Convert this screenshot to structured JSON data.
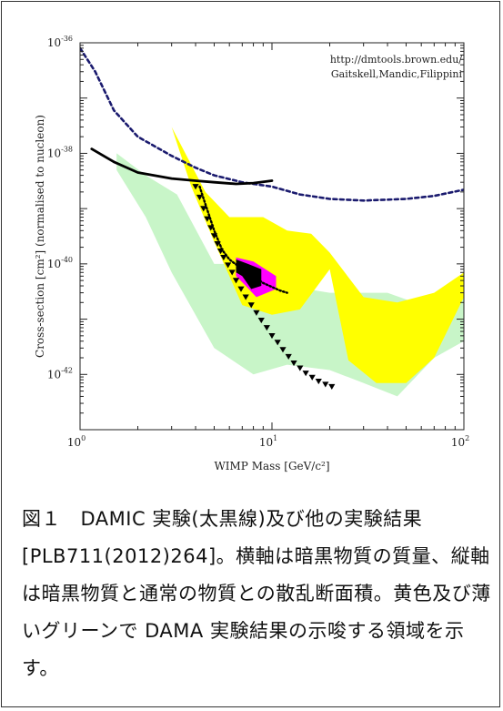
{
  "caption": "図１　DAMIC 実験(太黒線)及び他の実験結果[PLB711(2012)264]。横軸は暗黒物質の質量、縦軸は暗黒物質と通常の物質との散乱断面積。黄色及び薄いグリーンで DAMA 実験結果の示唆する領域を示す。",
  "chart_data": {
    "type": "line",
    "xlabel": "WIMP Mass [GeV/c²]",
    "ylabel": "Cross-section [cm²] (normalised to nucleon)",
    "x_scale": "log",
    "y_scale": "log",
    "xlim": [
      1,
      100
    ],
    "ylim": [
      1e-43,
      1e-36
    ],
    "x_ticks": [
      {
        "base": "10",
        "exp": "0",
        "value": 1
      },
      {
        "base": "10",
        "exp": "1",
        "value": 10
      },
      {
        "base": "10",
        "exp": "2",
        "value": 100
      }
    ],
    "y_ticks": [
      {
        "base": "10",
        "exp": "-36",
        "value": 1e-36
      },
      {
        "base": "10",
        "exp": "-38",
        "value": 1e-38
      },
      {
        "base": "10",
        "exp": "-40",
        "value": 1e-40
      },
      {
        "base": "10",
        "exp": "-42",
        "value": 1e-42
      }
    ],
    "annotation": [
      "http://dmtools.brown.edu/",
      "Gaitskell,Mandic,Filippini"
    ],
    "series": [
      {
        "kind": "band",
        "color": "#c8f5c8",
        "upper": [
          [
            1.55,
            1e-38
          ],
          [
            2.2,
            4e-39
          ],
          [
            3.2,
            1.8e-39
          ],
          [
            5,
            1e-40
          ],
          [
            8,
            1e-40
          ],
          [
            12,
            4e-41
          ],
          [
            20,
            3e-41
          ],
          [
            40,
            3e-41
          ],
          [
            70,
            1.5e-41
          ],
          [
            100,
            3e-41
          ]
        ],
        "lower": [
          [
            100,
            4e-42
          ],
          [
            70,
            2e-42
          ],
          [
            45,
            4e-43
          ],
          [
            30,
            7e-43
          ],
          [
            20,
            1.2e-42
          ],
          [
            12,
            1.5e-42
          ],
          [
            8,
            1e-42
          ],
          [
            5,
            3e-42
          ],
          [
            3,
            7e-41
          ],
          [
            2.2,
            7e-40
          ],
          [
            1.55,
            5e-39
          ]
        ]
      },
      {
        "kind": "band",
        "color": "#ffff00",
        "upper": [
          [
            3.0,
            3e-38
          ],
          [
            4.5,
            2e-39
          ],
          [
            6,
            7e-40
          ],
          [
            9,
            7e-40
          ],
          [
            12,
            4e-40
          ],
          [
            16,
            3.5e-40
          ],
          [
            20,
            1.6e-40
          ],
          [
            30,
            2.5e-41
          ],
          [
            45,
            2e-41
          ],
          [
            70,
            3e-41
          ],
          [
            100,
            7e-41
          ]
        ],
        "lower": [
          [
            100,
            2.5e-41
          ],
          [
            70,
            2e-42
          ],
          [
            50,
            7e-43
          ],
          [
            35,
            7e-43
          ],
          [
            25,
            1.8e-42
          ],
          [
            20,
            8e-41
          ],
          [
            14,
            1.5e-41
          ],
          [
            10,
            1.2e-41
          ],
          [
            7,
            1.8e-41
          ],
          [
            5,
            2.5e-40
          ],
          [
            3.8,
            2.5e-39
          ]
        ]
      },
      {
        "kind": "band",
        "color": "#ff00ff",
        "upper": [
          [
            6.5,
            1.3e-40
          ],
          [
            8.0,
            1.1e-40
          ],
          [
            10.5,
            6e-41
          ],
          [
            10.5,
            3.5e-41
          ]
        ],
        "lower": [
          [
            10.5,
            3.5e-41
          ],
          [
            8.3,
            2.5e-41
          ],
          [
            7.3,
            4e-41
          ],
          [
            6.5,
            6e-41
          ]
        ]
      },
      {
        "kind": "band",
        "color": "#000000",
        "upper": [
          [
            6.5,
            1.2e-40
          ],
          [
            7.5,
            1e-40
          ],
          [
            8.8,
            8e-41
          ]
        ],
        "lower": [
          [
            8.8,
            4e-41
          ],
          [
            7.8,
            3.5e-41
          ],
          [
            7.0,
            6e-41
          ],
          [
            6.5,
            7e-41
          ]
        ]
      },
      {
        "kind": "line",
        "color": "#1a1a6e",
        "dashed": true,
        "points": [
          [
            1,
            8e-37
          ],
          [
            1.2,
            3e-37
          ],
          [
            1.5,
            6e-38
          ],
          [
            2,
            2e-38
          ],
          [
            3,
            9e-39
          ],
          [
            4,
            5.5e-39
          ],
          [
            5,
            4e-39
          ],
          [
            7,
            3e-39
          ],
          [
            10,
            2.5e-39
          ],
          [
            14,
            1.8e-39
          ],
          [
            20,
            1.5e-39
          ],
          [
            30,
            1.4e-39
          ],
          [
            50,
            1.5e-39
          ],
          [
            70,
            1.7e-39
          ],
          [
            100,
            2.2e-39
          ]
        ]
      },
      {
        "kind": "line",
        "color": "#000000",
        "dashed": false,
        "points": [
          [
            1.15,
            1.2e-38
          ],
          [
            1.5,
            7e-39
          ],
          [
            2,
            4.5e-39
          ],
          [
            3,
            3.5e-39
          ],
          [
            4,
            3.2e-39
          ],
          [
            5,
            3e-39
          ],
          [
            6.5,
            2.8e-39
          ],
          [
            8,
            2.9e-39
          ],
          [
            10,
            3.2e-39
          ]
        ]
      },
      {
        "kind": "dotted",
        "color": "#000000",
        "points": [
          [
            4.2,
            2.5e-39
          ],
          [
            4.5,
            1.2e-39
          ],
          [
            5,
            4e-40
          ],
          [
            5.5,
            1.8e-40
          ],
          [
            6,
            1.2e-40
          ],
          [
            7,
            8e-41
          ],
          [
            8,
            6e-41
          ],
          [
            9,
            4.5e-41
          ],
          [
            11,
            3.3e-41
          ],
          [
            12,
            3e-41
          ]
        ]
      },
      {
        "kind": "markers",
        "color": "#000000",
        "marker": "triangle-down",
        "points": [
          [
            4.0,
            2.5e-39
          ],
          [
            4.2,
            1.6e-39
          ],
          [
            4.4,
            1e-39
          ],
          [
            4.6,
            6.5e-40
          ],
          [
            4.8,
            4.5e-40
          ],
          [
            5.0,
            3.2e-40
          ],
          [
            5.2,
            2.3e-40
          ],
          [
            5.4,
            1.7e-40
          ],
          [
            5.6,
            1.3e-40
          ],
          [
            5.9,
            9.5e-41
          ],
          [
            6.2,
            7e-41
          ],
          [
            6.5,
            5e-41
          ],
          [
            6.9,
            3.5e-41
          ],
          [
            7.3,
            2.5e-41
          ],
          [
            7.8,
            1.8e-41
          ],
          [
            8.3,
            1.3e-41
          ],
          [
            8.8,
            9.5e-42
          ],
          [
            9.4,
            7e-42
          ],
          [
            10.0,
            5e-42
          ],
          [
            10.7,
            3.8e-42
          ],
          [
            11.4,
            2.8e-42
          ],
          [
            12.2,
            2.1e-42
          ],
          [
            13.0,
            1.6e-42
          ],
          [
            14.0,
            1.3e-42
          ],
          [
            15.0,
            1.05e-42
          ],
          [
            16.2,
            8.8e-43
          ],
          [
            17.5,
            7.5e-43
          ],
          [
            19.0,
            6.6e-43
          ],
          [
            20.5,
            6e-43
          ]
        ]
      }
    ]
  }
}
